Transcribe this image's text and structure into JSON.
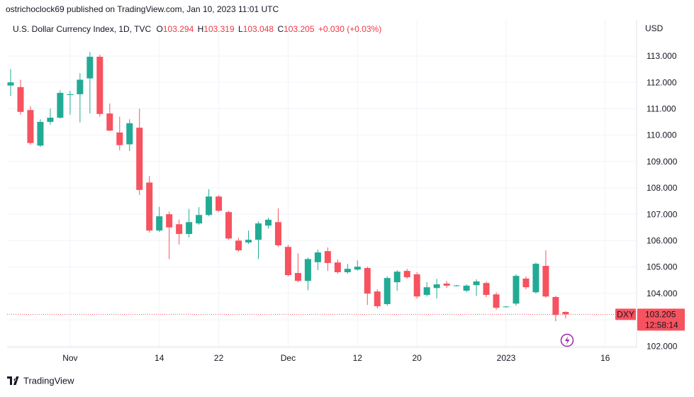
{
  "header": "ostrichoclock69 published on TradingView.com, Jan 10, 2023 11:01 UTC",
  "brand": "TradingView",
  "chart_data": {
    "type": "candlestick",
    "legend": {
      "symbol": "U.S. Dollar Currency Index, 1D, TVC",
      "labels": [
        "O",
        "H",
        "L",
        "C"
      ],
      "change": "+0.030 (+0.03%)"
    },
    "currency": "USD",
    "ticker": "DXY",
    "countdown": "12:58:14",
    "up_color": "#22ab94",
    "down_color": "#f7525f",
    "grid": true,
    "categories": [
      null,
      null,
      null,
      null,
      null,
      null,
      "Nov",
      null,
      null,
      null,
      null,
      null,
      null,
      null,
      null,
      "14",
      null,
      null,
      null,
      null,
      null,
      "22",
      null,
      null,
      null,
      null,
      null,
      null,
      "Dec",
      null,
      null,
      null,
      null,
      null,
      null,
      "12",
      null,
      null,
      null,
      null,
      null,
      "20",
      null,
      null,
      null,
      null,
      null,
      null,
      null,
      null,
      "2023",
      null,
      null,
      null,
      null,
      null,
      null,
      null,
      null,
      null,
      "16"
    ],
    "open": [
      111.88,
      111.82,
      110.95,
      109.6,
      110.5,
      110.66,
      111.52,
      111.55,
      112.15,
      112.97,
      110.82,
      110.1,
      109.65,
      110.28,
      108.2,
      106.38,
      107.0,
      106.62,
      106.25,
      106.65,
      106.97,
      107.67,
      107.08,
      106.0,
      105.93,
      106.03,
      106.57,
      106.7,
      105.76,
      104.77,
      104.47,
      105.18,
      105.6,
      105.17,
      104.8,
      104.9,
      104.96,
      104.07,
      103.59,
      104.42,
      104.85,
      104.72,
      103.94,
      104.2,
      104.37,
      104.28,
      104.1,
      104.31,
      104.39,
      103.96,
      103.48,
      103.61,
      104.56,
      104.04,
      105.04,
      103.86,
      103.294,
      null,
      null,
      null,
      null
    ],
    "high": [
      112.5,
      112.1,
      111.1,
      110.6,
      111.0,
      111.7,
      111.68,
      112.35,
      113.15,
      113.05,
      111.2,
      110.7,
      110.6,
      111.0,
      108.45,
      107.28,
      107.1,
      106.8,
      107.2,
      107.27,
      107.95,
      107.72,
      107.13,
      106.1,
      106.38,
      106.73,
      106.87,
      107.22,
      105.84,
      105.52,
      105.36,
      105.66,
      105.74,
      105.28,
      105.12,
      105.25,
      105.01,
      104.15,
      104.64,
      104.88,
      104.93,
      104.8,
      104.42,
      104.55,
      104.47,
      104.32,
      104.34,
      104.53,
      104.45,
      104.04,
      103.52,
      104.72,
      104.64,
      105.17,
      105.63,
      103.91,
      103.319,
      null,
      null,
      null,
      null
    ],
    "low": [
      111.48,
      110.77,
      109.63,
      109.55,
      110.4,
      110.63,
      110.77,
      110.48,
      110.82,
      110.7,
      110.15,
      109.42,
      109.4,
      107.73,
      106.3,
      106.33,
      105.3,
      105.85,
      106.12,
      106.6,
      106.92,
      107.08,
      106.03,
      105.58,
      105.87,
      105.3,
      106.46,
      105.76,
      104.64,
      104.42,
      104.12,
      104.88,
      104.85,
      104.74,
      104.74,
      104.85,
      103.56,
      103.43,
      103.53,
      104.1,
      104.55,
      103.8,
      103.88,
      103.8,
      104.21,
      104.26,
      104.04,
      103.9,
      103.86,
      103.37,
      103.46,
      103.53,
      104.15,
      103.99,
      103.83,
      102.94,
      103.048,
      null,
      null,
      null,
      null
    ],
    "close": [
      112.0,
      110.88,
      109.7,
      110.5,
      110.66,
      111.6,
      111.55,
      112.1,
      112.97,
      110.8,
      110.17,
      109.62,
      110.45,
      107.92,
      106.38,
      106.92,
      106.5,
      106.25,
      106.7,
      106.97,
      107.67,
      107.13,
      106.08,
      105.63,
      106.03,
      106.65,
      106.79,
      105.82,
      104.69,
      104.47,
      105.3,
      105.55,
      105.15,
      104.8,
      104.93,
      105.01,
      103.99,
      103.51,
      104.58,
      104.82,
      104.61,
      103.88,
      104.23,
      104.34,
      104.29,
      104.3,
      104.29,
      104.45,
      103.94,
      103.45,
      103.5,
      104.66,
      104.23,
      105.12,
      103.88,
      103.18,
      103.205,
      null,
      null,
      null,
      null
    ],
    "ylim": [
      101.95,
      114.37
    ],
    "yticks": [
      {
        "value": 102,
        "label": "102.000"
      },
      {
        "value": 103,
        "label": "103.000"
      },
      {
        "value": 104,
        "label": "104.000"
      },
      {
        "value": 105,
        "label": "105.000"
      },
      {
        "value": 106,
        "label": "106.000"
      },
      {
        "value": 107,
        "label": "107.000"
      },
      {
        "value": 108,
        "label": "108.000"
      },
      {
        "value": 109,
        "label": "109.000"
      },
      {
        "value": 110,
        "label": "110.000"
      },
      {
        "value": 111,
        "label": "111.000"
      },
      {
        "value": 112,
        "label": "112.000"
      },
      {
        "value": 113,
        "label": "113.000"
      }
    ]
  }
}
